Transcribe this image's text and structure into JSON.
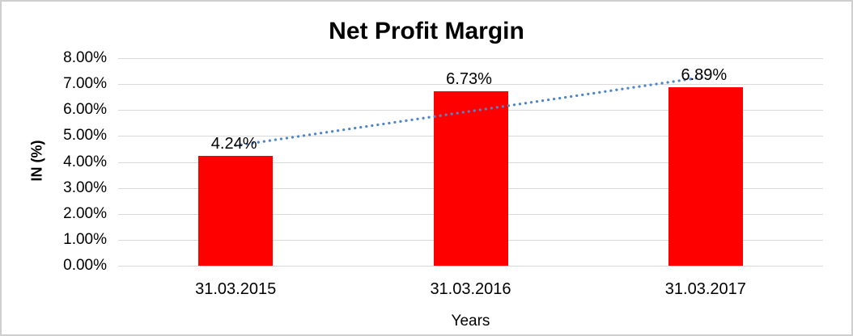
{
  "chart": {
    "title": "Net Profit Margin",
    "colors": {
      "bar": "#ff0000",
      "trendline": "#4e86c8",
      "gridline": "#d9d9d9",
      "text": "#000000",
      "chart_border": "#cfcfcf"
    }
  },
  "chart_data": {
    "type": "bar",
    "title": "Net Profit Margin",
    "xlabel": "Years",
    "ylabel": "IN (%)",
    "categories": [
      "31.03.2015",
      "31.03.2016",
      "31.03.2017"
    ],
    "values": [
      4.24,
      6.73,
      6.89
    ],
    "data_labels": [
      "4.24%",
      "6.73%",
      "6.89%"
    ],
    "ylim": [
      0,
      8
    ],
    "ytick_step": 1,
    "ytick_labels": [
      "0.00%",
      "1.00%",
      "2.00%",
      "3.00%",
      "4.00%",
      "5.00%",
      "6.00%",
      "7.00%",
      "8.00%"
    ],
    "grid": true,
    "legend": false,
    "bar_color": "#ff0000",
    "trendline": {
      "style": "dotted",
      "color": "#4e86c8",
      "start_value": 4.63,
      "end_value": 7.28
    }
  }
}
